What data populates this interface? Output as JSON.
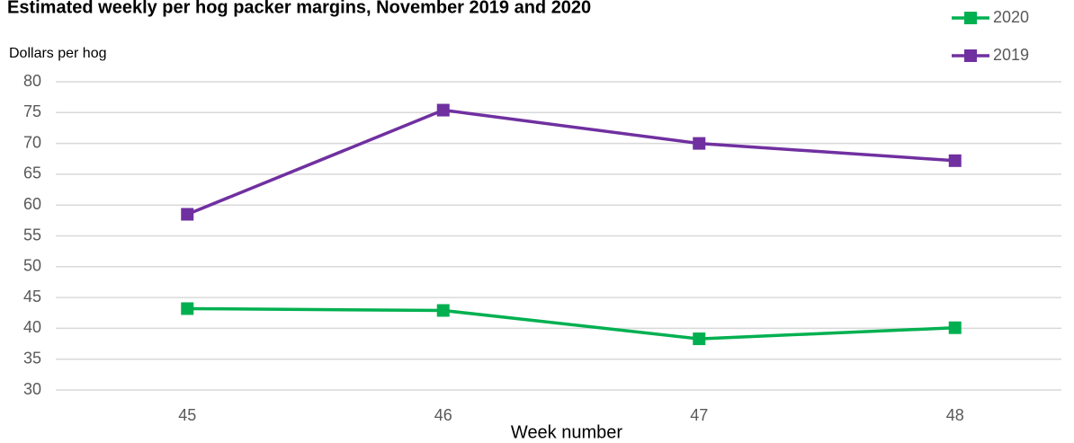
{
  "chart_data": {
    "type": "line",
    "title": "Estimated weekly per hog packer margins, November 2019 and 2020",
    "y_label": "Dollars per hog",
    "x_label": "Week number",
    "categories": [
      "45",
      "46",
      "47",
      "48"
    ],
    "series": [
      {
        "name": "2020",
        "color": "#00b050",
        "values": [
          43.2,
          42.9,
          38.3,
          40.1
        ]
      },
      {
        "name": "2019",
        "color": "#7030a0",
        "values": [
          58.5,
          75.4,
          70.0,
          67.2
        ]
      }
    ],
    "ylim": [
      30,
      80
    ],
    "yticks": [
      30,
      35,
      40,
      45,
      50,
      55,
      60,
      65,
      70,
      75,
      80
    ],
    "grid": true,
    "legend": "top-right"
  }
}
